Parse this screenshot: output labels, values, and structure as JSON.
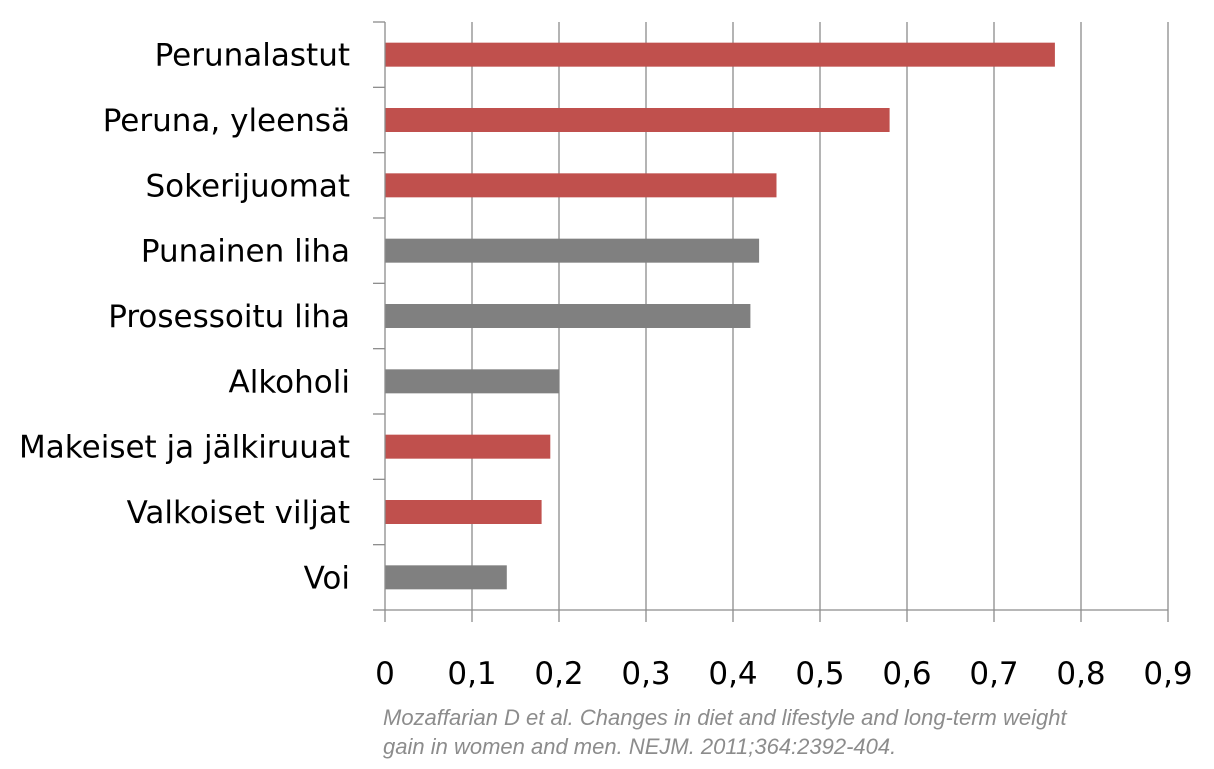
{
  "chart_data": {
    "type": "bar",
    "orientation": "horizontal",
    "categories": [
      "Voi",
      "Valkoiset viljat",
      "Makeiset ja jälkiruuat",
      "Alkoholi",
      "Prosessoitu liha",
      "Punainen liha",
      "Sokerijuomat",
      "Peruna, yleensä",
      "Perunalastut"
    ],
    "values": [
      0.14,
      0.18,
      0.19,
      0.2,
      0.42,
      0.43,
      0.45,
      0.58,
      0.77
    ],
    "bar_colors": [
      "#808080",
      "#c0504d",
      "#c0504d",
      "#808080",
      "#808080",
      "#808080",
      "#c0504d",
      "#c0504d",
      "#c0504d"
    ],
    "xlim": [
      0,
      0.9
    ],
    "xticks": [
      0,
      0.1,
      0.2,
      0.3,
      0.4,
      0.5,
      0.6,
      0.7,
      0.8,
      0.9
    ],
    "xtick_labels": [
      "0",
      "0,1",
      "0,2",
      "0,3",
      "0,4",
      "0,5",
      "0,6",
      "0,7",
      "0,8",
      "0,9"
    ],
    "grid": true,
    "legend": "none",
    "title": "",
    "xlabel": "",
    "ylabel": ""
  },
  "source": {
    "line1": "Mozaffarian D et al. Changes in diet and lifestyle and long-term weight",
    "line2": "gain in women and men. NEJM. 2011;364:2392-404."
  },
  "colors": {
    "grid": "#8c8c8c",
    "axis": "#8c8c8c",
    "caption": "#8c8c8c"
  }
}
